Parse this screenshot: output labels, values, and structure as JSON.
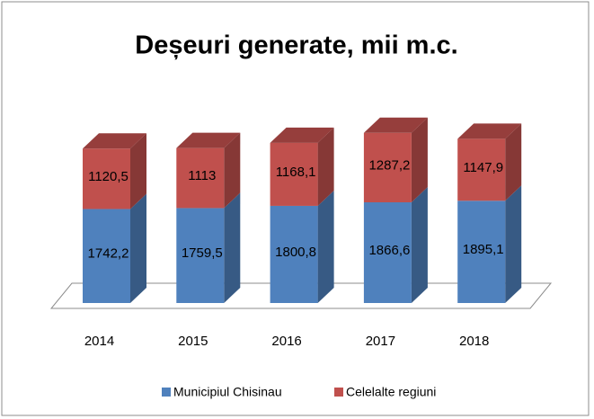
{
  "chart_data": {
    "type": "bar3d_stacked",
    "title": "Deșeuri generate, mii m.c.",
    "categories": [
      "2014",
      "2015",
      "2016",
      "2017",
      "2018"
    ],
    "series": [
      {
        "name": "Municipiul Chisinau",
        "color": "#4f81bd",
        "values": [
          1742.2,
          1759.5,
          1800.8,
          1866.6,
          1895.1
        ],
        "value_labels": [
          "1742,2",
          "1759,5",
          "1800,8",
          "1866,6",
          "1895,1"
        ]
      },
      {
        "name": "Celelalte regiuni",
        "color": "#c0504d",
        "values": [
          1120.5,
          1113,
          1168.1,
          1287.2,
          1147.9
        ],
        "value_labels": [
          "1120,5",
          "1113",
          "1168,1",
          "1287,2",
          "1147,9"
        ]
      }
    ],
    "legend": "bottom"
  }
}
